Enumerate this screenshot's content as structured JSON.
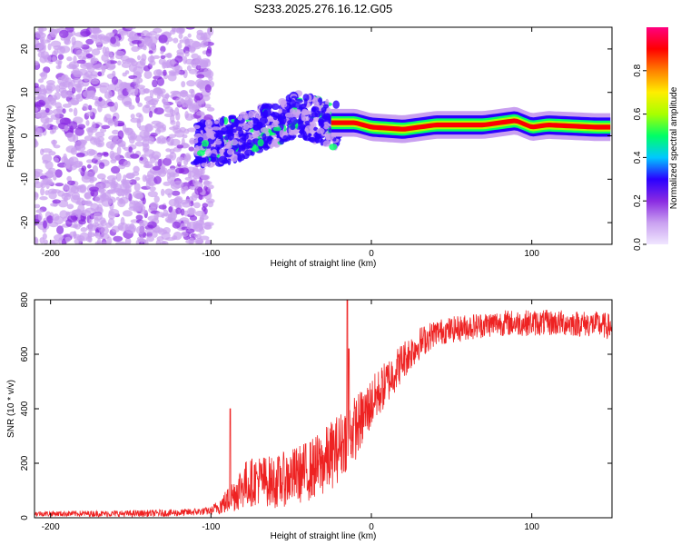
{
  "title": "S233.2025.276.16.12.G05",
  "chart_data": [
    {
      "type": "heatmap",
      "xlabel": "Height of straight line (km)",
      "ylabel": "Frequency (Hz)",
      "xlim": [
        -210,
        150
      ],
      "ylim": [
        -25,
        25
      ],
      "xticks": [
        -200,
        -100,
        0,
        100
      ],
      "yticks": [
        -20,
        -10,
        0,
        10,
        20
      ],
      "xtick_labels": [
        "-200",
        "-100",
        "0",
        "100"
      ],
      "ytick_labels": [
        "-20",
        "-10",
        "0",
        "10",
        "20"
      ],
      "colorbar": {
        "label": "Normalized spectral amplitude",
        "range": [
          0,
          1
        ],
        "ticks": [
          0.0,
          0.2,
          0.4,
          0.6,
          0.8
        ],
        "tick_labels": [
          "0.0",
          "0.2",
          "0.4",
          "0.6",
          "0.8"
        ],
        "colors": [
          "#f0e6ff",
          "#c9a0f0",
          "#8a2be2",
          "#2a00ff",
          "#00c8ff",
          "#00ff66",
          "#a8ff00",
          "#ffee00",
          "#ff8000",
          "#ff0000",
          "#ff0080"
        ]
      },
      "regions": [
        {
          "name": "noise",
          "x_range": [
            -210,
            -100
          ],
          "freq_range": [
            -25,
            25
          ],
          "amplitude": 0.1
        },
        {
          "name": "transition",
          "x_range": [
            -110,
            -20
          ],
          "freq_center": [
            [
              -100,
              -2
            ],
            [
              -80,
              0
            ],
            [
              -60,
              3
            ],
            [
              -45,
              5
            ],
            [
              -30,
              3
            ],
            [
              -20,
              2
            ]
          ],
          "amplitude": 0.3
        },
        {
          "name": "carrier",
          "x_range": [
            -25,
            150
          ],
          "freq_center": [
            [
              -20,
              3
            ],
            [
              -10,
              3
            ],
            [
              0,
              2
            ],
            [
              20,
              1.5
            ],
            [
              40,
              2.5
            ],
            [
              70,
              2.5
            ],
            [
              80,
              3
            ],
            [
              90,
              3.5
            ],
            [
              100,
              2
            ],
            [
              110,
              2.5
            ],
            [
              140,
              2
            ],
            [
              150,
              2
            ]
          ],
          "amplitude": 0.9
        }
      ]
    },
    {
      "type": "line",
      "xlabel": "Height of straight line (km)",
      "ylabel": "SNR (10 * v/v)",
      "xlim": [
        -210,
        150
      ],
      "ylim": [
        0,
        800
      ],
      "xticks": [
        -200,
        -100,
        0,
        100
      ],
      "yticks": [
        0,
        200,
        400,
        600,
        800
      ],
      "xtick_labels": [
        "-200",
        "-100",
        "0",
        "100"
      ],
      "ytick_labels": [
        "0",
        "200",
        "400",
        "600",
        "800"
      ],
      "color": "#ee2222",
      "trend": {
        "x": [
          -210,
          -180,
          -150,
          -120,
          -100,
          -90,
          -80,
          -70,
          -60,
          -50,
          -40,
          -30,
          -20,
          -15,
          -10,
          -5,
          0,
          10,
          20,
          30,
          40,
          60,
          80,
          100,
          120,
          140,
          150
        ],
        "y": [
          15,
          15,
          15,
          18,
          25,
          60,
          120,
          140,
          130,
          150,
          170,
          200,
          260,
          300,
          330,
          370,
          420,
          500,
          580,
          640,
          680,
          700,
          715,
          715,
          715,
          710,
          700
        ]
      },
      "spread": {
        "x": [
          -210,
          -100,
          -90,
          -80,
          -60,
          -40,
          -25,
          -10,
          0,
          20,
          40,
          150
        ],
        "y": [
          12,
          18,
          60,
          110,
          120,
          140,
          160,
          150,
          120,
          90,
          60,
          60
        ]
      },
      "spikes": [
        {
          "x": -15,
          "y": 800
        },
        {
          "x": -88,
          "y": 400
        },
        {
          "x": -14,
          "y": 620
        }
      ]
    }
  ]
}
